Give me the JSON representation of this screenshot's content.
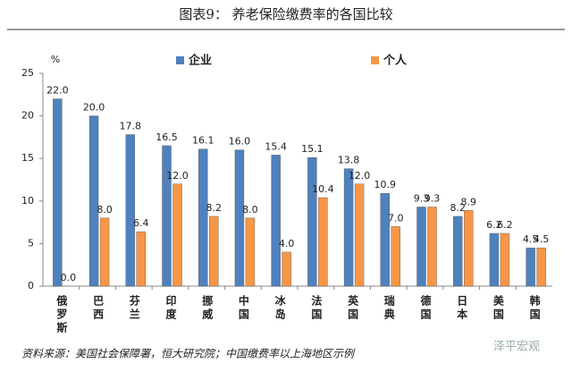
{
  "chart_data": {
    "type": "bar",
    "title": "图表9：   养老保险缴费率的各国比较",
    "y_label": "%",
    "source": "资料来源：美国社会保障署，恒大研究院；中国缴费率以上海地区示例",
    "watermark": "泽平宏观",
    "categories": [
      "俄罗斯",
      "巴西",
      "芬兰",
      "印度",
      "挪威",
      "中国",
      "冰岛",
      "法国",
      "英国",
      "瑞典",
      "德国",
      "日本",
      "美国",
      "韩国"
    ],
    "series": [
      {
        "name": "企业",
        "color": "#4f81bd",
        "values": [
          22.0,
          20.0,
          17.8,
          16.5,
          16.1,
          16.0,
          15.4,
          15.1,
          13.8,
          10.9,
          9.3,
          8.2,
          6.2,
          4.5
        ],
        "value_labels": [
          "22.0",
          "20.0",
          "17.8",
          "16.5",
          "16.1",
          "16.0",
          "15.4",
          "15.1",
          "13.8",
          "10.9",
          "9.3",
          "8.2",
          "6.2",
          "4.5"
        ]
      },
      {
        "name": "个人",
        "color": "#f79646",
        "values": [
          0.0,
          8.0,
          6.4,
          12.0,
          8.2,
          8.0,
          4.0,
          10.4,
          12.0,
          7.0,
          9.3,
          8.9,
          6.2,
          4.5
        ],
        "value_labels": [
          "0.0",
          "8.0",
          "6.4",
          "12.0",
          "8.2",
          "8.0",
          "4.0",
          "10.4",
          "12.0",
          "7.0",
          "9.3",
          "8.9",
          "6.2",
          "4.5"
        ]
      }
    ],
    "ylim": [
      0,
      25
    ],
    "yticks": [
      0,
      5,
      10,
      15,
      20,
      25
    ],
    "legend": "top",
    "grid": false
  }
}
